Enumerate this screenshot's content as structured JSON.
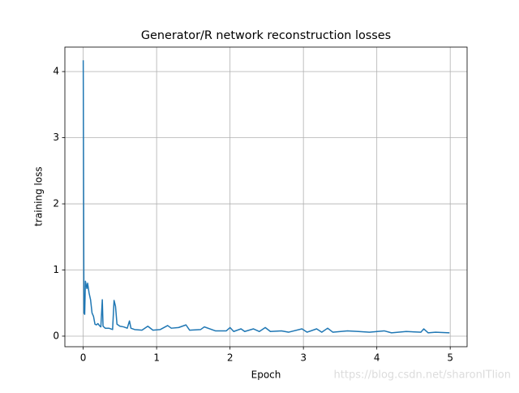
{
  "chart_data": {
    "type": "line",
    "title": "Generator/R network reconstruction losses",
    "x_label": "Epoch",
    "y_label": "training loss",
    "watermark": "https://blog.csdn.net/sharonITlion",
    "x": [
      0,
      0.01,
      0.02,
      0.03,
      0.05,
      0.06,
      0.08,
      0.1,
      0.12,
      0.14,
      0.16,
      0.18,
      0.2,
      0.22,
      0.24,
      0.26,
      0.27,
      0.3,
      0.35,
      0.4,
      0.42,
      0.44,
      0.46,
      0.5,
      0.55,
      0.6,
      0.63,
      0.65,
      0.7,
      0.8,
      0.88,
      0.95,
      1.05,
      1.15,
      1.2,
      1.3,
      1.4,
      1.45,
      1.6,
      1.65,
      1.8,
      1.95,
      2.0,
      2.05,
      2.15,
      2.2,
      2.32,
      2.4,
      2.48,
      2.55,
      2.7,
      2.8,
      2.98,
      3.05,
      3.18,
      3.25,
      3.33,
      3.4,
      3.6,
      3.75,
      3.9,
      4.1,
      4.2,
      4.4,
      4.6,
      4.64,
      4.7,
      4.8,
      4.99
    ],
    "values": [
      4.17,
      0.35,
      0.33,
      0.83,
      0.72,
      0.8,
      0.65,
      0.55,
      0.35,
      0.3,
      0.18,
      0.17,
      0.19,
      0.16,
      0.14,
      0.55,
      0.15,
      0.12,
      0.12,
      0.1,
      0.54,
      0.45,
      0.18,
      0.15,
      0.14,
      0.12,
      0.23,
      0.12,
      0.1,
      0.09,
      0.15,
      0.09,
      0.1,
      0.16,
      0.12,
      0.13,
      0.17,
      0.09,
      0.1,
      0.14,
      0.08,
      0.08,
      0.13,
      0.07,
      0.11,
      0.07,
      0.11,
      0.07,
      0.13,
      0.07,
      0.08,
      0.06,
      0.11,
      0.06,
      0.11,
      0.06,
      0.12,
      0.06,
      0.08,
      0.07,
      0.06,
      0.08,
      0.05,
      0.07,
      0.06,
      0.11,
      0.05,
      0.06,
      0.05
    ],
    "color": "#1f77b4",
    "xlim": [
      -0.25,
      5.23
    ],
    "ylim": [
      -0.16,
      4.37
    ],
    "xticks": [
      0,
      1,
      2,
      3,
      4,
      5
    ],
    "yticks": [
      0,
      1,
      2,
      3,
      4
    ],
    "grid": true
  }
}
